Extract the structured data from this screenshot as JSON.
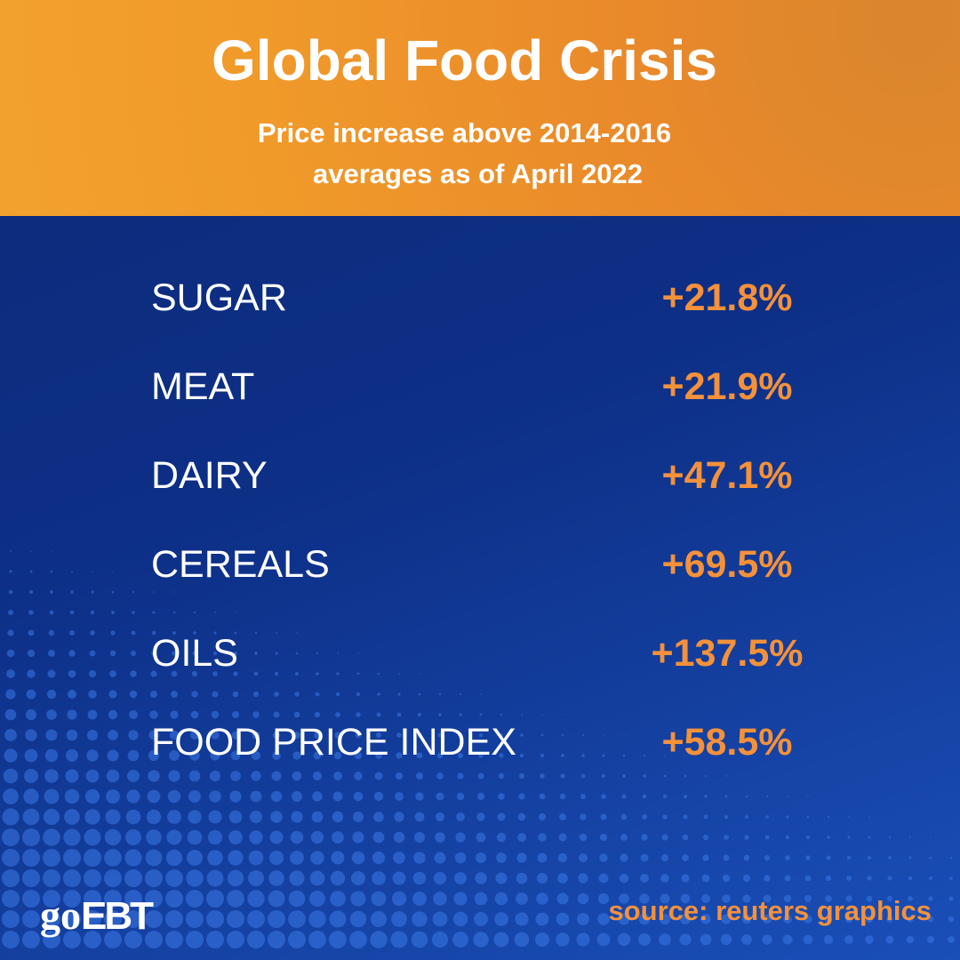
{
  "header": {
    "title": "Global Food Crisis",
    "subtitle": [
      "Price increase above 2014-2016",
      "averages as of April 2022"
    ]
  },
  "rows": [
    {
      "label": "SUGAR",
      "value": "+21.8%"
    },
    {
      "label": "MEAT",
      "value": "+21.9%"
    },
    {
      "label": "DAIRY",
      "value": "+47.1%"
    },
    {
      "label": "CEREALS",
      "value": "+69.5%"
    },
    {
      "label": "OILS",
      "value": "+137.5%"
    },
    {
      "label": "FOOD PRICE INDEX",
      "value": "+58.5%"
    }
  ],
  "source": "source: reuters graphics",
  "logo": {
    "go": "go",
    "ebt": "EBT"
  }
}
